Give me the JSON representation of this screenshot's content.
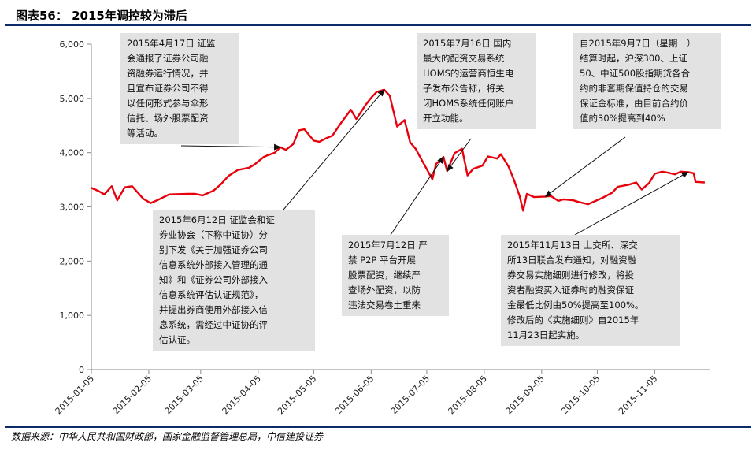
{
  "header": {
    "title": "图表56： 2015年调控较为滞后"
  },
  "source": "数据来源：中华人民共和国财政部，国家金融监督管理总局，中信建投证券",
  "colors": {
    "line": "#e8000b",
    "rule": "#0d2a6b",
    "note_bg": "#e2e2e2",
    "axis": "#888888"
  },
  "chart_data": {
    "type": "line",
    "title": "",
    "xlabel": "",
    "ylabel": "",
    "ylim": [
      0,
      6000
    ],
    "yticks": [
      "0",
      "1,000",
      "2,000",
      "3,000",
      "4,000",
      "5,000",
      "6,000"
    ],
    "xticks": [
      "2015-01-05",
      "2015-02-05",
      "2015-03-05",
      "2015-04-05",
      "2015-05-05",
      "2015-06-05",
      "2015-07-05",
      "2015-08-05",
      "2015-09-05",
      "2015-10-05",
      "2015-11-05"
    ],
    "grid": false,
    "series": [
      {
        "name": "",
        "color": "#e8000b",
        "points": [
          [
            "2015-01-05",
            3350
          ],
          [
            "2015-01-09",
            3290
          ],
          [
            "2015-01-12",
            3230
          ],
          [
            "2015-01-16",
            3380
          ],
          [
            "2015-01-19",
            3120
          ],
          [
            "2015-01-23",
            3360
          ],
          [
            "2015-01-27",
            3380
          ],
          [
            "2015-02-02",
            3150
          ],
          [
            "2015-02-06",
            3070
          ],
          [
            "2015-02-10",
            3130
          ],
          [
            "2015-02-16",
            3230
          ],
          [
            "2015-02-26",
            3240
          ],
          [
            "2015-03-02",
            3240
          ],
          [
            "2015-03-06",
            3210
          ],
          [
            "2015-03-12",
            3300
          ],
          [
            "2015-03-16",
            3420
          ],
          [
            "2015-03-20",
            3570
          ],
          [
            "2015-03-25",
            3680
          ],
          [
            "2015-03-31",
            3720
          ],
          [
            "2015-04-03",
            3780
          ],
          [
            "2015-04-08",
            3920
          ],
          [
            "2015-04-10",
            3950
          ],
          [
            "2015-04-14",
            4000
          ],
          [
            "2015-04-17",
            4100
          ],
          [
            "2015-04-20",
            4050
          ],
          [
            "2015-04-24",
            4160
          ],
          [
            "2015-04-27",
            4410
          ],
          [
            "2015-04-30",
            4430
          ],
          [
            "2015-05-05",
            4220
          ],
          [
            "2015-05-08",
            4200
          ],
          [
            "2015-05-12",
            4270
          ],
          [
            "2015-05-15",
            4310
          ],
          [
            "2015-05-20",
            4560
          ],
          [
            "2015-05-25",
            4790
          ],
          [
            "2015-05-28",
            4620
          ],
          [
            "2015-06-02",
            4880
          ],
          [
            "2015-06-05",
            5010
          ],
          [
            "2015-06-08",
            5120
          ],
          [
            "2015-06-12",
            5160
          ],
          [
            "2015-06-15",
            5050
          ],
          [
            "2015-06-19",
            4480
          ],
          [
            "2015-06-23",
            4600
          ],
          [
            "2015-06-26",
            4190
          ],
          [
            "2015-06-29",
            4070
          ],
          [
            "2015-07-03",
            3820
          ],
          [
            "2015-07-08",
            3510
          ],
          [
            "2015-07-10",
            3790
          ],
          [
            "2015-07-14",
            3920
          ],
          [
            "2015-07-16",
            3660
          ],
          [
            "2015-07-20",
            3990
          ],
          [
            "2015-07-24",
            4070
          ],
          [
            "2015-07-27",
            3580
          ],
          [
            "2015-07-30",
            3700
          ],
          [
            "2015-08-04",
            3760
          ],
          [
            "2015-08-07",
            3930
          ],
          [
            "2015-08-12",
            3890
          ],
          [
            "2015-08-14",
            3970
          ],
          [
            "2015-08-18",
            3750
          ],
          [
            "2015-08-21",
            3500
          ],
          [
            "2015-08-24",
            3210
          ],
          [
            "2015-08-26",
            2930
          ],
          [
            "2015-08-28",
            3240
          ],
          [
            "2015-09-01",
            3180
          ],
          [
            "2015-09-07",
            3190
          ],
          [
            "2015-09-10",
            3200
          ],
          [
            "2015-09-14",
            3110
          ],
          [
            "2015-09-17",
            3140
          ],
          [
            "2015-09-22",
            3120
          ],
          [
            "2015-09-25",
            3090
          ],
          [
            "2015-09-30",
            3050
          ],
          [
            "2015-10-08",
            3170
          ],
          [
            "2015-10-13",
            3260
          ],
          [
            "2015-10-16",
            3370
          ],
          [
            "2015-10-22",
            3410
          ],
          [
            "2015-10-26",
            3450
          ],
          [
            "2015-10-29",
            3320
          ],
          [
            "2015-11-02",
            3440
          ],
          [
            "2015-11-05",
            3610
          ],
          [
            "2015-11-09",
            3650
          ],
          [
            "2015-11-12",
            3630
          ],
          [
            "2015-11-16",
            3600
          ],
          [
            "2015-11-19",
            3650
          ],
          [
            "2015-11-23",
            3640
          ],
          [
            "2015-11-26",
            3620
          ],
          [
            "2015-11-27",
            3460
          ],
          [
            "2015-12-02",
            3450
          ]
        ]
      }
    ],
    "annotations": [
      {
        "lines": [
          "2015年4月17日 证监",
          "会通报了证券公司融",
          "资融券运行情况，并",
          "且宣布证券公司不得",
          "以任何形式参与伞形",
          "信托、场外股票配资",
          "等活动。"
        ],
        "target": [
          "2015-04-17",
          4100
        ]
      },
      {
        "lines": [
          "2015年7月16日 国内",
          "最大的配资交易系统",
          "HOMS的运营商恒生电",
          "子发布公告称，将关",
          "闭HOMS系统任何账户",
          "开立功能。"
        ],
        "target": [
          "2015-07-16",
          3660
        ]
      },
      {
        "lines": [
          "自2015年9月7日（星期一）",
          "结算时起，沪深300、上证",
          "50、中证500股指期货各合",
          "约的非套期保值持仓的交易",
          "保证金标准，由目前合约价",
          "值的30%提高到40%"
        ],
        "target": [
          "2015-09-07",
          3190
        ]
      },
      {
        "lines": [
          "2015年6月12日 证监会和证",
          "券业协会（下称中证协）分",
          "别下发《关于加强证券公司",
          "信息系统外部接入管理的通",
          "知》和《证券公司外部接入",
          "信息系统评估认证规范》，",
          "并提出券商使用外部接入信",
          "息系统，需经过中证协的评",
          "估认证。"
        ],
        "target": [
          "2015-06-12",
          5160
        ]
      },
      {
        "lines": [
          "2015年7月12日 严",
          "禁 P2P 平台开展",
          "股票配资，继续严",
          "查场外配资，以防",
          "违法交易卷土重来"
        ],
        "target": [
          "2015-07-14",
          3920
        ]
      },
      {
        "lines": [
          "2015年11月13日 上交所、深交",
          "所13日联合发布通知，对融资融",
          "券交易实施细则进行修改，将投",
          "资者融资买入证券时的融资保证",
          "金最低比例由50%提高至100%。",
          "修改后的《实施细则》自2015年",
          "11月23日起实施。"
        ],
        "target": [
          "2015-11-23",
          3640
        ]
      }
    ]
  }
}
